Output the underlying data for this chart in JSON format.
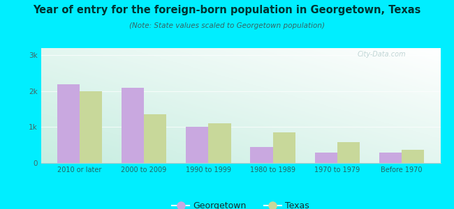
{
  "title": "Year of entry for the foreign-born population in Georgetown, Texas",
  "subtitle": "(Note: State values scaled to Georgetown population)",
  "categories": [
    "2010 or later",
    "2000 to 2009",
    "1990 to 1999",
    "1980 to 1989",
    "1970 to 1979",
    "Before 1970"
  ],
  "georgetown_values": [
    2200,
    2100,
    1000,
    450,
    290,
    300
  ],
  "texas_values": [
    2000,
    1350,
    1100,
    850,
    580,
    360
  ],
  "georgetown_color": "#c9a8e0",
  "texas_color": "#c8d89a",
  "bg_outer": "#00eeff",
  "title_color": "#003333",
  "subtitle_color": "#336666",
  "yticks": [
    0,
    1000,
    2000,
    3000
  ],
  "ytick_labels": [
    "0",
    "1k",
    "2k",
    "3k"
  ],
  "ylim": [
    0,
    3200
  ],
  "bar_width": 0.35,
  "legend_georgetown": "Georgetown",
  "legend_texas": "Texas"
}
